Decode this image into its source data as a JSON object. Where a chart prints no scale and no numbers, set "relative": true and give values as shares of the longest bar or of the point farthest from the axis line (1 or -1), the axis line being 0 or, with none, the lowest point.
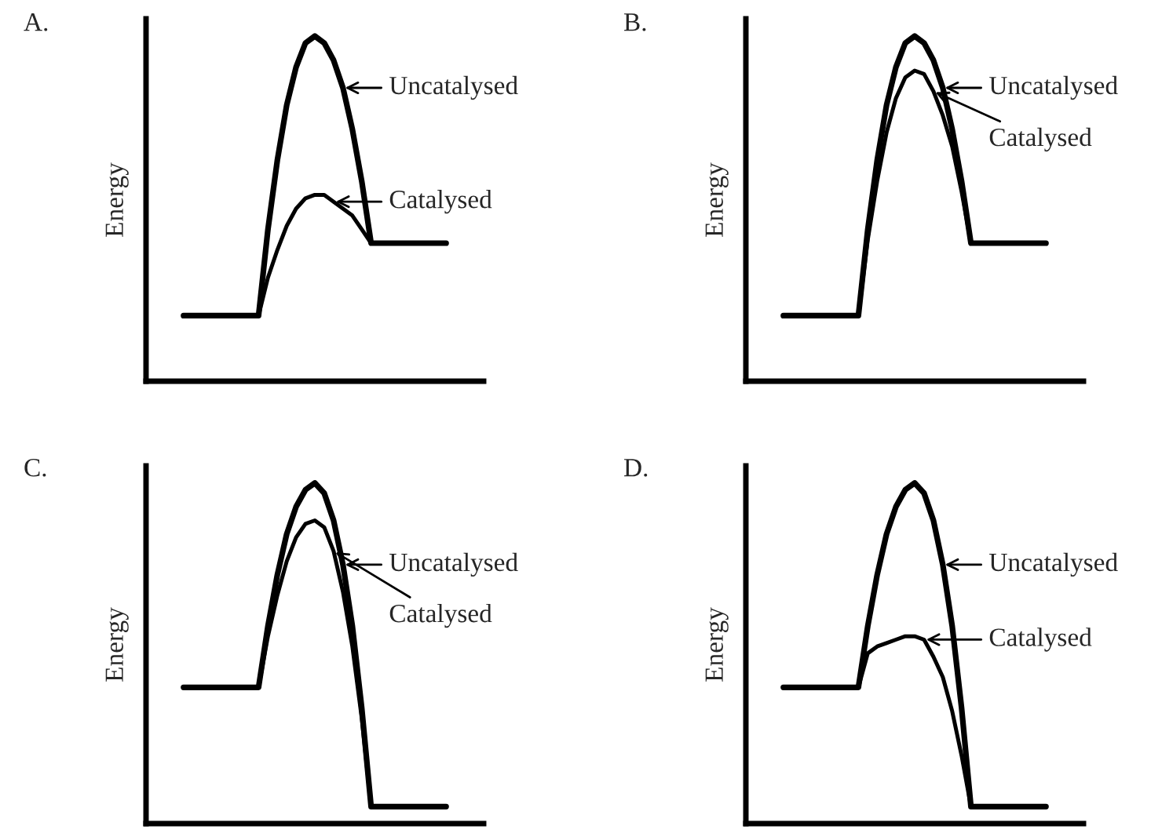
{
  "chart_data": [
    {
      "type": "line",
      "title": "A.",
      "ylabel": "Energy",
      "relative": true,
      "grid": false,
      "legend": "top right",
      "categories": [
        null,
        null,
        null,
        null,
        null,
        null,
        null,
        null,
        null,
        null,
        null,
        null,
        null,
        null,
        null,
        null,
        null,
        null,
        null,
        null,
        null,
        null,
        null,
        null,
        null,
        null,
        null,
        null,
        null,
        null,
        null,
        null,
        null,
        null,
        null,
        null,
        null
      ],
      "series": [
        {
          "name": "Uncatalysed",
          "color": "#000000",
          "values": [
            null,
            null,
            null,
            null,
            0.19,
            0.19,
            0.19,
            0.19,
            0.19,
            0.19,
            0.19,
            0.19,
            0.19,
            0.44,
            0.64,
            0.8,
            0.91,
            0.98,
            1,
            0.98,
            0.93,
            0.85,
            0.73,
            0.58,
            0.4,
            0.4,
            0.4,
            0.4,
            0.4,
            0.4,
            0.4,
            0.4,
            0.4,
            null,
            null,
            null,
            null
          ]
        },
        {
          "name": "Catalysed",
          "color": "#000000",
          "values": [
            null,
            null,
            null,
            null,
            null,
            null,
            null,
            null,
            null,
            null,
            null,
            null,
            0.19,
            0.3,
            0.38,
            0.45,
            0.5,
            0.53,
            0.54,
            0.54,
            0.52,
            0.5,
            0.48,
            0.44,
            0.4,
            null,
            null,
            null,
            null,
            null,
            null,
            null,
            null,
            null,
            null,
            null,
            null
          ]
        }
      ]
    },
    {
      "type": "line",
      "title": "B.",
      "ylabel": "Energy",
      "relative": true,
      "grid": false,
      "legend": "top right",
      "categories": [
        null,
        null,
        null,
        null,
        null,
        null,
        null,
        null,
        null,
        null,
        null,
        null,
        null,
        null,
        null,
        null,
        null,
        null,
        null,
        null,
        null,
        null,
        null,
        null,
        null,
        null,
        null,
        null,
        null,
        null,
        null,
        null,
        null,
        null,
        null,
        null,
        null
      ],
      "series": [
        {
          "name": "Uncatalysed",
          "color": "#000000",
          "values": [
            null,
            null,
            null,
            null,
            0.19,
            0.19,
            0.19,
            0.19,
            0.19,
            0.19,
            0.19,
            0.19,
            0.19,
            0.44,
            0.64,
            0.8,
            0.91,
            0.98,
            1,
            0.98,
            0.93,
            0.85,
            0.73,
            0.58,
            0.4,
            0.4,
            0.4,
            0.4,
            0.4,
            0.4,
            0.4,
            0.4,
            0.4,
            null,
            null,
            null,
            null
          ]
        },
        {
          "name": "Catalysed",
          "color": "#000000",
          "values": [
            null,
            null,
            null,
            null,
            null,
            null,
            null,
            null,
            null,
            null,
            null,
            null,
            0.19,
            0.41,
            0.58,
            0.72,
            0.82,
            0.88,
            0.9,
            0.89,
            0.84,
            0.77,
            0.68,
            0.55,
            0.4,
            null,
            null,
            null,
            null,
            null,
            null,
            null,
            null,
            null,
            null,
            null,
            null
          ]
        }
      ]
    },
    {
      "type": "line",
      "title": "C.",
      "ylabel": "Energy",
      "relative": true,
      "grid": false,
      "legend": "top right",
      "categories": [
        null,
        null,
        null,
        null,
        null,
        null,
        null,
        null,
        null,
        null,
        null,
        null,
        null,
        null,
        null,
        null,
        null,
        null,
        null,
        null,
        null,
        null,
        null,
        null,
        null,
        null,
        null,
        null,
        null,
        null,
        null,
        null,
        null,
        null,
        null,
        null,
        null
      ],
      "series": [
        {
          "name": "Uncatalysed",
          "color": "#000000",
          "values": [
            null,
            null,
            null,
            null,
            0.4,
            0.4,
            0.4,
            0.4,
            0.4,
            0.4,
            0.4,
            0.4,
            0.4,
            0.58,
            0.73,
            0.85,
            0.93,
            0.98,
            1,
            0.97,
            0.89,
            0.76,
            0.58,
            0.34,
            0.05,
            0.05,
            0.05,
            0.05,
            0.05,
            0.05,
            0.05,
            0.05,
            0.05,
            null,
            null,
            null,
            null
          ]
        },
        {
          "name": "Catalysed",
          "color": "#000000",
          "values": [
            null,
            null,
            null,
            null,
            null,
            null,
            null,
            null,
            null,
            null,
            null,
            null,
            0.4,
            0.55,
            0.67,
            0.77,
            0.84,
            0.88,
            0.89,
            0.87,
            0.8,
            0.68,
            0.52,
            0.31,
            0.05,
            null,
            null,
            null,
            null,
            null,
            null,
            null,
            null,
            null,
            null,
            null,
            null
          ]
        }
      ]
    },
    {
      "type": "line",
      "title": "D.",
      "ylabel": "Energy",
      "relative": true,
      "grid": false,
      "legend": "top right",
      "categories": [
        null,
        null,
        null,
        null,
        null,
        null,
        null,
        null,
        null,
        null,
        null,
        null,
        null,
        null,
        null,
        null,
        null,
        null,
        null,
        null,
        null,
        null,
        null,
        null,
        null,
        null,
        null,
        null,
        null,
        null,
        null,
        null,
        null,
        null,
        null,
        null,
        null
      ],
      "series": [
        {
          "name": "Uncatalysed",
          "color": "#000000",
          "values": [
            null,
            null,
            null,
            null,
            0.4,
            0.4,
            0.4,
            0.4,
            0.4,
            0.4,
            0.4,
            0.4,
            0.4,
            0.58,
            0.73,
            0.85,
            0.93,
            0.98,
            1,
            0.97,
            0.89,
            0.76,
            0.58,
            0.34,
            0.05,
            0.05,
            0.05,
            0.05,
            0.05,
            0.05,
            0.05,
            0.05,
            0.05,
            null,
            null,
            null,
            null
          ]
        },
        {
          "name": "Catalysed",
          "color": "#000000",
          "values": [
            null,
            null,
            null,
            null,
            null,
            null,
            null,
            null,
            null,
            null,
            null,
            null,
            0.4,
            0.5,
            0.52,
            0.53,
            0.54,
            0.55,
            0.55,
            0.54,
            0.49,
            0.43,
            0.33,
            0.2,
            0.05,
            null,
            null,
            null,
            null,
            null,
            null,
            null,
            null,
            null,
            null,
            null,
            null
          ]
        }
      ]
    }
  ]
}
